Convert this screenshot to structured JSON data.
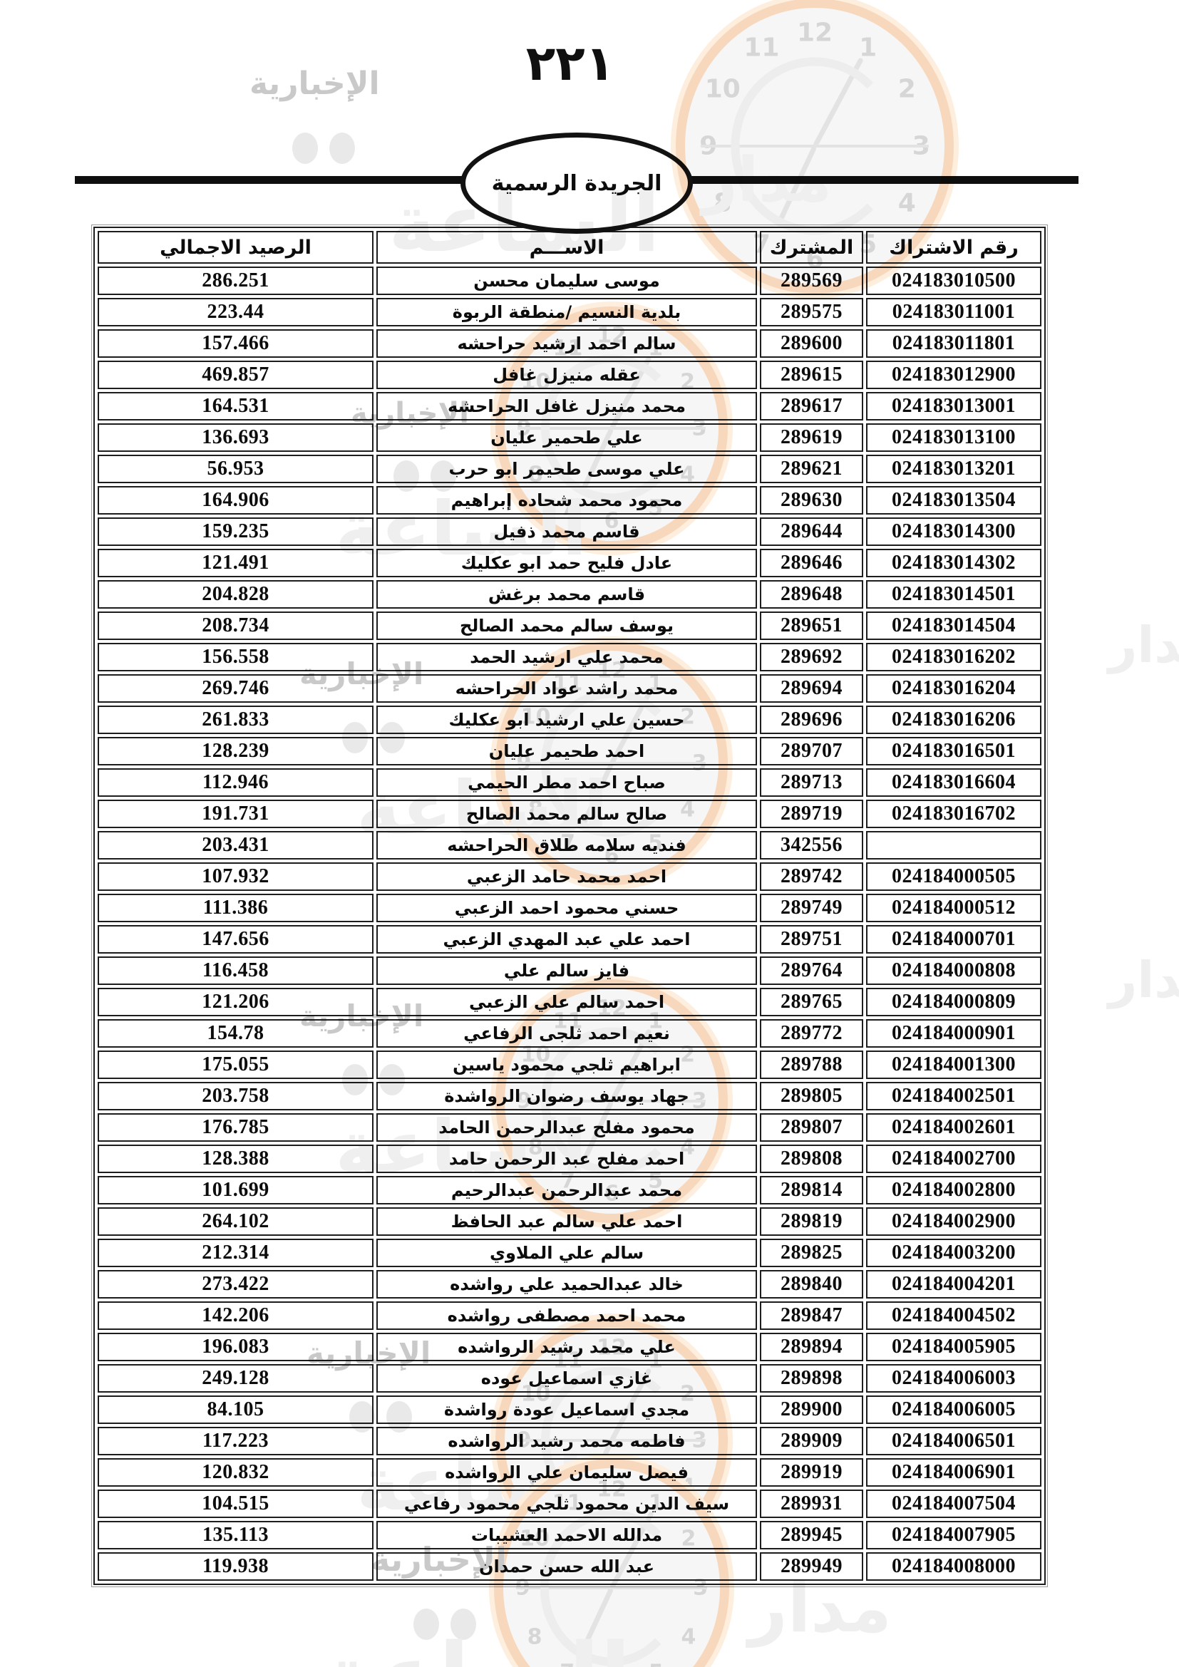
{
  "page": {
    "number": "٢٢١"
  },
  "masthead": {
    "gazette_title": "الجريدة الرسمية"
  },
  "watermark": {
    "brand_madar": "مدار",
    "brand_alsaaa": "الساعة",
    "brand_alikhbariya": "الإخبارية",
    "clock_numerals": [
      "1",
      "2",
      "3",
      "4",
      "5",
      "6",
      "7",
      "8",
      "9",
      "10",
      "11",
      "12"
    ],
    "colors": {
      "ring": "#f7d8bd",
      "ring_glow": "#fdeedd",
      "face": "#f6f6f6",
      "numeral": "#d6d6d6",
      "hand": "#e3e3e3",
      "swirl": "#ededed",
      "brand_light": "#efefef",
      "news_gray": "#c9c9c9",
      "dot_gray": "#e9e9e9"
    }
  },
  "table": {
    "headers": {
      "subscription_no": "رقم الاشتراك",
      "subscriber": "المشترك",
      "name": "الاســـم",
      "total_balance": "الرصيد الاجمالي"
    },
    "rows": [
      {
        "subscription_no": "024183010500",
        "subscriber": "289569",
        "name": "موسى سليمان محسن",
        "balance": "286.251"
      },
      {
        "subscription_no": "024183011001",
        "subscriber": "289575",
        "name": "بلدية النسيم /منطقة الربوة",
        "balance": "223.44"
      },
      {
        "subscription_no": "024183011801",
        "subscriber": "289600",
        "name": "سالم احمد ارشيد حراحشه",
        "balance": "157.466"
      },
      {
        "subscription_no": "024183012900",
        "subscriber": "289615",
        "name": "عقله منيزل غافل",
        "balance": "469.857"
      },
      {
        "subscription_no": "024183013001",
        "subscriber": "289617",
        "name": "محمد منيزل غافل الحراحشه",
        "balance": "164.531"
      },
      {
        "subscription_no": "024183013100",
        "subscriber": "289619",
        "name": "علي طحمير عليان",
        "balance": "136.693"
      },
      {
        "subscription_no": "024183013201",
        "subscriber": "289621",
        "name": "علي موسى طحيمر ابو حرب",
        "balance": "56.953"
      },
      {
        "subscription_no": "024183013504",
        "subscriber": "289630",
        "name": "محمود محمد شحاده إبراهيم",
        "balance": "164.906"
      },
      {
        "subscription_no": "024183014300",
        "subscriber": "289644",
        "name": "قاسم محمد ذفيل",
        "balance": "159.235"
      },
      {
        "subscription_no": "024183014302",
        "subscriber": "289646",
        "name": "عادل فليح حمد ابو عكليك",
        "balance": "121.491"
      },
      {
        "subscription_no": "024183014501",
        "subscriber": "289648",
        "name": "قاسم محمد برغش",
        "balance": "204.828"
      },
      {
        "subscription_no": "024183014504",
        "subscriber": "289651",
        "name": "يوسف سالم محمد الصالح",
        "balance": "208.734"
      },
      {
        "subscription_no": "024183016202",
        "subscriber": "289692",
        "name": "محمد علي ارشيد الحمد",
        "balance": "156.558"
      },
      {
        "subscription_no": "024183016204",
        "subscriber": "289694",
        "name": "محمد راشد عواد الحراحشه",
        "balance": "269.746"
      },
      {
        "subscription_no": "024183016206",
        "subscriber": "289696",
        "name": "حسين علي ارشيد ابو عكليك",
        "balance": "261.833"
      },
      {
        "subscription_no": "024183016501",
        "subscriber": "289707",
        "name": "احمد طحيمر  عليان",
        "balance": "128.239"
      },
      {
        "subscription_no": "024183016604",
        "subscriber": "289713",
        "name": "صباح احمد مطر الحيمي",
        "balance": "112.946"
      },
      {
        "subscription_no": "024183016702",
        "subscriber": "289719",
        "name": "صالح سالم محمد الصالح",
        "balance": "191.731"
      },
      {
        "subscription_no": "",
        "subscriber": "342556",
        "name": "فنديه سلامه طلاق الحراحشه",
        "balance": "203.431"
      },
      {
        "subscription_no": "024184000505",
        "subscriber": "289742",
        "name": "احمد محمد حامد الزعبي",
        "balance": "107.932"
      },
      {
        "subscription_no": "024184000512",
        "subscriber": "289749",
        "name": "حسني محمود احمد الزعبي",
        "balance": "111.386"
      },
      {
        "subscription_no": "024184000701",
        "subscriber": "289751",
        "name": "احمد علي عبد المهدي الزعبي",
        "balance": "147.656"
      },
      {
        "subscription_no": "024184000808",
        "subscriber": "289764",
        "name": "فايز سالم علي",
        "balance": "116.458"
      },
      {
        "subscription_no": "024184000809",
        "subscriber": "289765",
        "name": "احمد سالم علي الزعبي",
        "balance": "121.206"
      },
      {
        "subscription_no": "024184000901",
        "subscriber": "289772",
        "name": "نعيم احمد ثلجى الرفاعي",
        "balance": "154.78"
      },
      {
        "subscription_no": "024184001300",
        "subscriber": "289788",
        "name": "ابراهيم ثلجي محمود ياسين",
        "balance": "175.055"
      },
      {
        "subscription_no": "024184002501",
        "subscriber": "289805",
        "name": "جهاد يوسف رضوان الرواشدة",
        "balance": "203.758"
      },
      {
        "subscription_no": "024184002601",
        "subscriber": "289807",
        "name": "محمود مفلح عبدالرحمن الحامد",
        "balance": "176.785"
      },
      {
        "subscription_no": "024184002700",
        "subscriber": "289808",
        "name": "احمد مفلح عبد الرحمن حامد",
        "balance": "128.388"
      },
      {
        "subscription_no": "024184002800",
        "subscriber": "289814",
        "name": "محمد عبدالرحمن عبدالرحيم",
        "balance": "101.699"
      },
      {
        "subscription_no": "024184002900",
        "subscriber": "289819",
        "name": "احمد علي سالم عبد الحافظ",
        "balance": "264.102"
      },
      {
        "subscription_no": "024184003200",
        "subscriber": "289825",
        "name": "سالم علي الملاوي",
        "balance": "212.314"
      },
      {
        "subscription_no": "024184004201",
        "subscriber": "289840",
        "name": "خالد عبدالحميد علي رواشده",
        "balance": "273.422"
      },
      {
        "subscription_no": "024184004502",
        "subscriber": "289847",
        "name": "محمد احمد مصطفى رواشده",
        "balance": "142.206"
      },
      {
        "subscription_no": "024184005905",
        "subscriber": "289894",
        "name": "علي محمد رشيد الرواشده",
        "balance": "196.083"
      },
      {
        "subscription_no": "024184006003",
        "subscriber": "289898",
        "name": "غازي اسماعيل عوده",
        "balance": "249.128"
      },
      {
        "subscription_no": "024184006005",
        "subscriber": "289900",
        "name": "مجدي اسماعيل عودة رواشدة",
        "balance": "84.105"
      },
      {
        "subscription_no": "024184006501",
        "subscriber": "289909",
        "name": "فاطمه محمد رشيد الرواشده",
        "balance": "117.223"
      },
      {
        "subscription_no": "024184006901",
        "subscriber": "289919",
        "name": "فيصل سليمان علي الرواشده",
        "balance": "120.832"
      },
      {
        "subscription_no": "024184007504",
        "subscriber": "289931",
        "name": "سيف الدين محمود ثلجي محمود رفاعي",
        "balance": "104.515"
      },
      {
        "subscription_no": "024184007905",
        "subscriber": "289945",
        "name": "مدالله الاحمد العشيبات",
        "balance": "135.113"
      },
      {
        "subscription_no": "024184008000",
        "subscriber": "289949",
        "name": "عبد الله حسن حمدان",
        "balance": "119.938"
      }
    ]
  }
}
